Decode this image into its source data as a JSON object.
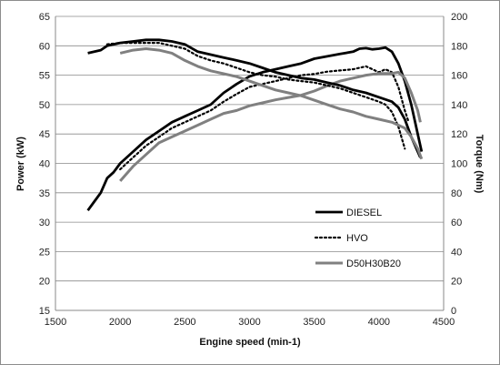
{
  "chart_data": {
    "type": "line",
    "title": "",
    "xlabel": "Engine speed (min-1)",
    "ylabel_left": "Power (kW)",
    "ylabel_right": "Torque (Nm)",
    "xlim": [
      1500,
      4500
    ],
    "ylim_left": [
      15,
      65
    ],
    "ylim_right": [
      0,
      200
    ],
    "x_ticks": [
      1500,
      2000,
      2500,
      3000,
      3500,
      4000,
      4500
    ],
    "y_ticks_left": [
      15,
      20,
      25,
      30,
      35,
      40,
      45,
      50,
      55,
      60,
      65
    ],
    "y_ticks_right": [
      0,
      20,
      40,
      60,
      80,
      100,
      120,
      140,
      160,
      180,
      200
    ],
    "grid": "horizontal",
    "legend_position": "bottom-right",
    "series": [
      {
        "name": "DIESEL",
        "measure": "power",
        "axis": "left",
        "color": "#000000",
        "style": "solid",
        "points": [
          [
            1750,
            32
          ],
          [
            1800,
            33.5
          ],
          [
            1850,
            35
          ],
          [
            1900,
            37.5
          ],
          [
            1950,
            38.5
          ],
          [
            2000,
            40
          ],
          [
            2100,
            42
          ],
          [
            2200,
            44
          ],
          [
            2300,
            45.5
          ],
          [
            2400,
            47
          ],
          [
            2500,
            48
          ],
          [
            2600,
            49
          ],
          [
            2700,
            50
          ],
          [
            2800,
            52
          ],
          [
            2900,
            53.5
          ],
          [
            3000,
            54.8
          ],
          [
            3100,
            55.5
          ],
          [
            3200,
            56
          ],
          [
            3300,
            56.5
          ],
          [
            3400,
            57
          ],
          [
            3500,
            57.8
          ],
          [
            3600,
            58.2
          ],
          [
            3700,
            58.6
          ],
          [
            3800,
            59
          ],
          [
            3850,
            59.5
          ],
          [
            3900,
            59.6
          ],
          [
            3950,
            59.4
          ],
          [
            4000,
            59.5
          ],
          [
            4050,
            59.7
          ],
          [
            4100,
            59
          ],
          [
            4150,
            57
          ],
          [
            4200,
            54
          ],
          [
            4250,
            50
          ],
          [
            4300,
            45
          ],
          [
            4330,
            42
          ]
        ]
      },
      {
        "name": "HVO",
        "measure": "power",
        "axis": "left",
        "color": "#000000",
        "style": "dotted",
        "points": [
          [
            2000,
            39
          ],
          [
            2100,
            41
          ],
          [
            2200,
            43
          ],
          [
            2300,
            44.5
          ],
          [
            2400,
            46
          ],
          [
            2500,
            47
          ],
          [
            2600,
            48
          ],
          [
            2700,
            49
          ],
          [
            2800,
            50.5
          ],
          [
            2900,
            51.8
          ],
          [
            3000,
            53
          ],
          [
            3100,
            53.5
          ],
          [
            3200,
            54
          ],
          [
            3300,
            54.5
          ],
          [
            3400,
            55
          ],
          [
            3500,
            55.2
          ],
          [
            3600,
            55.6
          ],
          [
            3700,
            55.8
          ],
          [
            3800,
            56
          ],
          [
            3900,
            56.5
          ],
          [
            3950,
            56
          ],
          [
            4000,
            55.5
          ],
          [
            4050,
            56
          ],
          [
            4100,
            55.5
          ],
          [
            4150,
            53
          ],
          [
            4200,
            49
          ],
          [
            4230,
            47
          ]
        ]
      },
      {
        "name": "D50H30B20",
        "measure": "power",
        "axis": "left",
        "color": "#808080",
        "style": "solid",
        "points": [
          [
            2000,
            37
          ],
          [
            2100,
            39.5
          ],
          [
            2200,
            41.5
          ],
          [
            2300,
            43.5
          ],
          [
            2400,
            44.5
          ],
          [
            2500,
            45.5
          ],
          [
            2600,
            46.5
          ],
          [
            2700,
            47.5
          ],
          [
            2800,
            48.5
          ],
          [
            2900,
            49
          ],
          [
            3000,
            49.8
          ],
          [
            3100,
            50.3
          ],
          [
            3200,
            50.8
          ],
          [
            3300,
            51.2
          ],
          [
            3400,
            51.6
          ],
          [
            3500,
            52.3
          ],
          [
            3600,
            53.2
          ],
          [
            3700,
            54
          ],
          [
            3800,
            54.5
          ],
          [
            3900,
            55
          ],
          [
            4000,
            55.3
          ],
          [
            4100,
            55.3
          ],
          [
            4150,
            55.5
          ],
          [
            4200,
            54.5
          ],
          [
            4250,
            52
          ],
          [
            4300,
            49
          ],
          [
            4320,
            47
          ]
        ]
      },
      {
        "name": "DIESEL",
        "measure": "torque",
        "axis": "right",
        "color": "#000000",
        "style": "solid",
        "points": [
          [
            1750,
            175
          ],
          [
            1850,
            177
          ],
          [
            1900,
            180
          ],
          [
            2000,
            182
          ],
          [
            2100,
            183
          ],
          [
            2200,
            184
          ],
          [
            2300,
            184
          ],
          [
            2400,
            183
          ],
          [
            2500,
            181
          ],
          [
            2600,
            176
          ],
          [
            2700,
            174
          ],
          [
            2800,
            172
          ],
          [
            2900,
            170
          ],
          [
            3000,
            168
          ],
          [
            3100,
            165
          ],
          [
            3200,
            162
          ],
          [
            3300,
            160
          ],
          [
            3400,
            158
          ],
          [
            3500,
            157
          ],
          [
            3600,
            155
          ],
          [
            3700,
            153
          ],
          [
            3800,
            150
          ],
          [
            3900,
            148
          ],
          [
            4000,
            145
          ],
          [
            4100,
            142
          ],
          [
            4150,
            138
          ],
          [
            4200,
            130
          ],
          [
            4250,
            118
          ],
          [
            4300,
            108
          ],
          [
            4320,
            104
          ]
        ]
      },
      {
        "name": "HVO",
        "measure": "torque",
        "axis": "right",
        "color": "#000000",
        "style": "dotted",
        "points": [
          [
            1900,
            181
          ],
          [
            2000,
            182
          ],
          [
            2100,
            182
          ],
          [
            2200,
            182
          ],
          [
            2300,
            182
          ],
          [
            2400,
            180
          ],
          [
            2500,
            178
          ],
          [
            2600,
            173
          ],
          [
            2700,
            170
          ],
          [
            2800,
            168
          ],
          [
            2900,
            165
          ],
          [
            3000,
            162
          ],
          [
            3100,
            160
          ],
          [
            3200,
            159
          ],
          [
            3300,
            157
          ],
          [
            3400,
            156
          ],
          [
            3500,
            155
          ],
          [
            3600,
            153
          ],
          [
            3700,
            151
          ],
          [
            3800,
            148
          ],
          [
            3900,
            145
          ],
          [
            4000,
            142
          ],
          [
            4050,
            140
          ],
          [
            4100,
            135
          ],
          [
            4150,
            125
          ],
          [
            4200,
            110
          ]
        ]
      },
      {
        "name": "D50H30B20",
        "measure": "torque",
        "axis": "right",
        "color": "#808080",
        "style": "solid",
        "points": [
          [
            2000,
            175
          ],
          [
            2100,
            177
          ],
          [
            2200,
            178
          ],
          [
            2300,
            177
          ],
          [
            2400,
            175
          ],
          [
            2500,
            170
          ],
          [
            2600,
            166
          ],
          [
            2700,
            163
          ],
          [
            2800,
            161
          ],
          [
            2900,
            159
          ],
          [
            3000,
            156
          ],
          [
            3100,
            153
          ],
          [
            3200,
            150
          ],
          [
            3300,
            148
          ],
          [
            3400,
            146
          ],
          [
            3500,
            143
          ],
          [
            3600,
            140
          ],
          [
            3700,
            137
          ],
          [
            3800,
            135
          ],
          [
            3900,
            132
          ],
          [
            4000,
            130
          ],
          [
            4100,
            128
          ],
          [
            4200,
            124
          ],
          [
            4250,
            118
          ],
          [
            4300,
            110
          ],
          [
            4330,
            103
          ]
        ]
      }
    ]
  }
}
